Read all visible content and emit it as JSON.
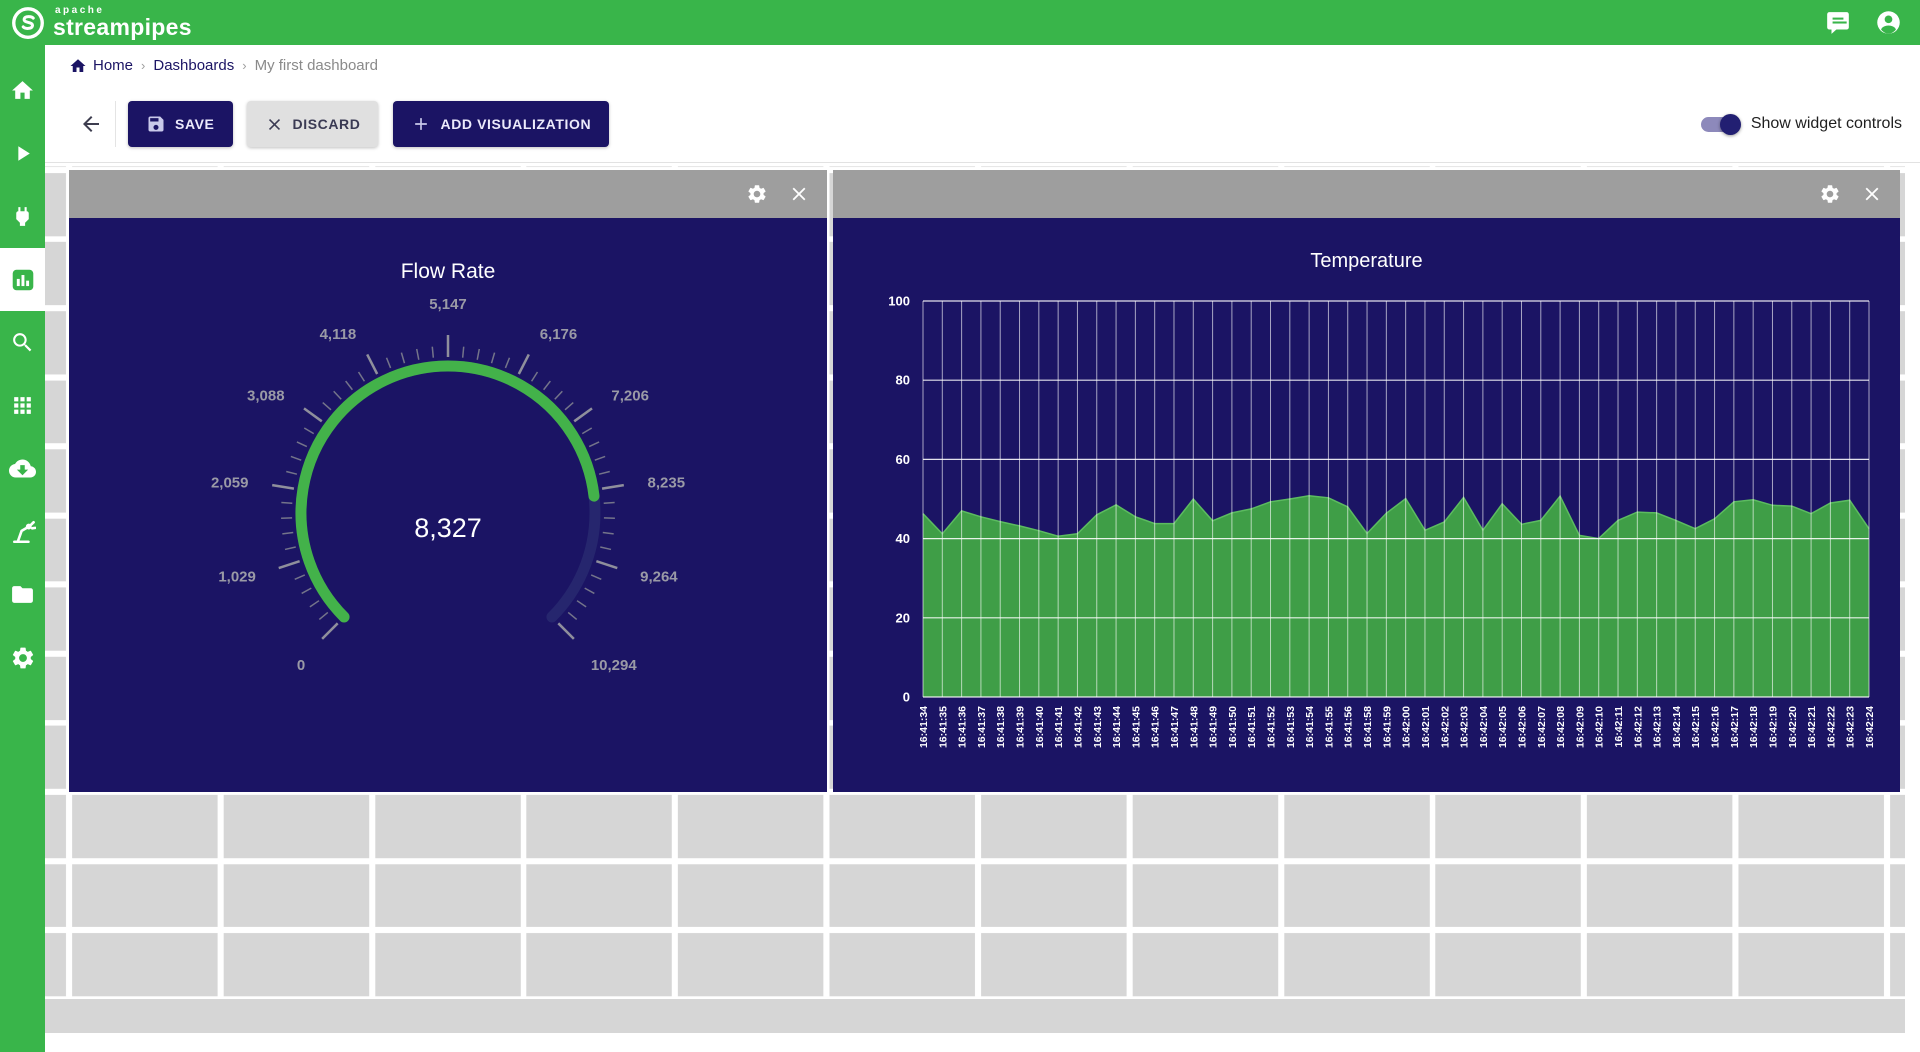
{
  "app": {
    "brand_top": "apache",
    "brand_bottom": "streampipes"
  },
  "breadcrumb": {
    "separator": "›",
    "items": [
      "Home",
      "Dashboards",
      "My first dashboard"
    ]
  },
  "toolbar": {
    "save_label": "SAVE",
    "discard_label": "DISCARD",
    "add_visualization_label": "ADD VISUALIZATION",
    "toggle_label": "Show widget controls",
    "toggle_on": true
  },
  "sidebar": {
    "items": [
      "home",
      "pipelines",
      "connect",
      "dashboard",
      "data-explorer",
      "apps",
      "install-pipeline-elements",
      "asset-management",
      "files",
      "settings"
    ],
    "active_item": "dashboard"
  },
  "colors": {
    "brand_green": "#39b54a",
    "navy": "#1b1464",
    "widget_header_gray": "#9e9e9e",
    "gauge_green": "#43b24a",
    "gauge_track": "#26266e",
    "chart_green": "#3f9e47",
    "chart_edge_green": "#5cbb60",
    "tick_gray": "#8f8f9c",
    "minor_tick_gray": "#74748a",
    "gauge_label_gray": "#9a9aa6",
    "grid_bg": "#d6d6d6"
  },
  "chart_data": [
    {
      "type": "gauge",
      "title": "Flow Rate",
      "min": 0,
      "max": 10294,
      "value": 8327,
      "value_display": "8,327",
      "tick_labels": [
        "0",
        "1,029",
        "2,059",
        "3,088",
        "4,118",
        "5,147",
        "6,176",
        "7,206",
        "8,235",
        "9,264",
        "10,294"
      ],
      "start_angle": 225,
      "sweep_angle": 270,
      "minor_ticks_per_interval": 4
    },
    {
      "type": "area",
      "title": "Temperature",
      "ylim": [
        0,
        100
      ],
      "yticks": [
        0,
        20,
        40,
        60,
        80,
        100
      ],
      "grid": true,
      "x": [
        "16:41:34",
        "16:41:35",
        "16:41:36",
        "16:41:37",
        "16:41:38",
        "16:41:39",
        "16:41:40",
        "16:41:41",
        "16:41:42",
        "16:41:43",
        "16:41:44",
        "16:41:45",
        "16:41:46",
        "16:41:47",
        "16:41:48",
        "16:41:49",
        "16:41:50",
        "16:41:51",
        "16:41:52",
        "16:41:53",
        "16:41:54",
        "16:41:55",
        "16:41:56",
        "16:41:58",
        "16:41:59",
        "16:42:00",
        "16:42:01",
        "16:42:02",
        "16:42:03",
        "16:42:04",
        "16:42:05",
        "16:42:06",
        "16:42:07",
        "16:42:08",
        "16:42:09",
        "16:42:10",
        "16:42:11",
        "16:42:12",
        "16:42:13",
        "16:42:14",
        "16:42:15",
        "16:42:16",
        "16:42:17",
        "16:42:18",
        "16:42:19",
        "16:42:20",
        "16:42:21",
        "16:42:22",
        "16:42:23",
        "16:42:24"
      ],
      "values": [
        46.3,
        41.2,
        47,
        45.5,
        44.3,
        43.2,
        42,
        40.6,
        41.2,
        46,
        48.5,
        45.5,
        43.8,
        43.8,
        50,
        44.5,
        46.5,
        47.5,
        49.3,
        50,
        50.8,
        50.3,
        48,
        41.3,
        46.4,
        50.1,
        42.1,
        44.2,
        50.4,
        42.1,
        48.8,
        43.6,
        44.6,
        50.7,
        40.8,
        40,
        44.6,
        46.7,
        46.5,
        44.6,
        42.5,
        45,
        49.3,
        49.8,
        48.4,
        48.2,
        46.3,
        49,
        49.7,
        42.5
      ]
    }
  ]
}
